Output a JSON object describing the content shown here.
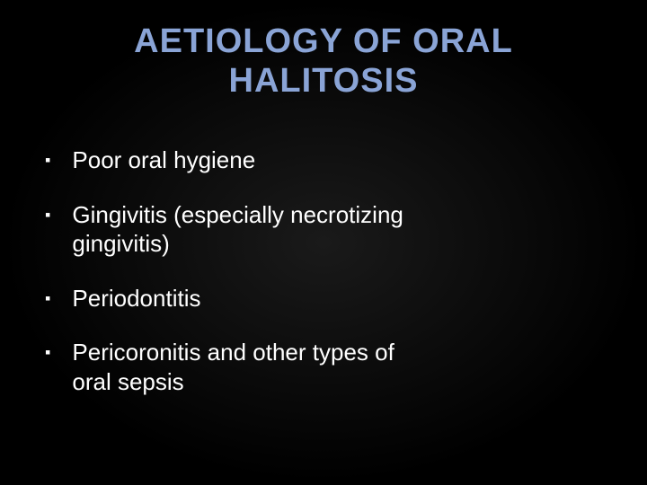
{
  "slide": {
    "title": "AETIOLOGY OF ORAL HALITOSIS",
    "title_color": "#8aa4d6",
    "title_fontsize": 38,
    "background": "radial-gradient(ellipse at center, #1a1a1a 0%, #000000 70%)",
    "text_color": "#ffffff",
    "body_fontsize": 26,
    "bullet_marker": "▪",
    "bullets": [
      {
        "text": "Poor oral hygiene"
      },
      {
        "text": "Gingivitis (especially necrotizing gingivitis)"
      },
      {
        "text": "Periodontitis"
      },
      {
        "text": "Pericoronitis and other types of oral sepsis"
      }
    ]
  }
}
